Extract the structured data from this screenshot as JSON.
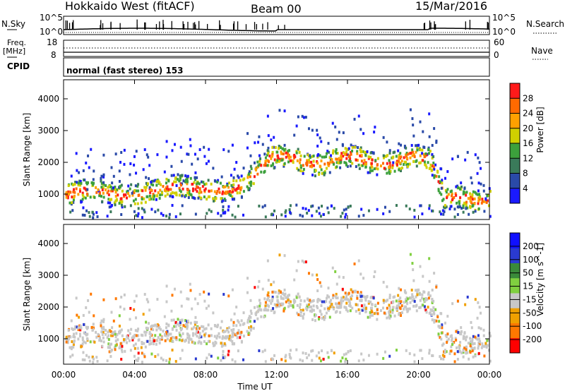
{
  "header": {
    "station": "Hokkaido West (fitACF)",
    "beam": "Beam 00",
    "date": "15/Mar/2016"
  },
  "noise_panel": {
    "left_label": "N.Sky",
    "right_label": "N.Search",
    "left_top_tick": "10^5",
    "left_bottom_tick": "10^0",
    "right_top_tick": "10^5",
    "right_bottom_tick": "10^0"
  },
  "freq_panel": {
    "left_label_line1": "Freq.",
    "left_label_line2": "[MHz]",
    "right_label": "Nave",
    "left_top_tick": "18",
    "left_bottom_tick": "8",
    "right_top_tick": "60",
    "right_bottom_tick": "0"
  },
  "cpid_panel": {
    "label": "CPID",
    "mode_text": "normal (fast stereo) 153"
  },
  "time_axis": {
    "label": "Time UT",
    "ticks": [
      "00:00",
      "04:00",
      "08:00",
      "12:00",
      "16:00",
      "20:00",
      "00:00"
    ]
  },
  "colors": {
    "power": [
      "#1a1aff",
      "#2a4aa8",
      "#3a7a5a",
      "#3ca03c",
      "#d0d000",
      "#ffa000",
      "#ff6a00",
      "#ff1a1a"
    ],
    "velocity": [
      "#ff0000",
      "#ff7800",
      "#f0a000",
      "#c8c8c8",
      "#80d040",
      "#3a8a3a",
      "#2a3ad0",
      "#1010ff"
    ]
  },
  "chart_data": [
    {
      "type": "heatmap",
      "name": "power",
      "xlabel": "Time UT",
      "ylabel": "Slant Range [km]",
      "ylim": [
        200,
        4600
      ],
      "y_ticks": [
        "1000",
        "2000",
        "3000",
        "4000"
      ],
      "colorbar_label": "Power [dB]",
      "colorbar_ticks": [
        "4",
        "8",
        "12",
        "16",
        "20",
        "24",
        "28"
      ],
      "colorbar_range": [
        0,
        32
      ]
    },
    {
      "type": "heatmap",
      "name": "velocity",
      "xlabel": "Time UT",
      "ylabel": "Slant Range [km]",
      "ylim": [
        200,
        4600
      ],
      "y_ticks": [
        "1000",
        "2000",
        "3000",
        "4000"
      ],
      "colorbar_label": "Velocity [m s^-1]",
      "colorbar_ticks": [
        "-200",
        "-100",
        "-50",
        "-15",
        "15",
        "50",
        "100",
        "200"
      ],
      "colorbar_range": [
        -250,
        250
      ]
    }
  ]
}
